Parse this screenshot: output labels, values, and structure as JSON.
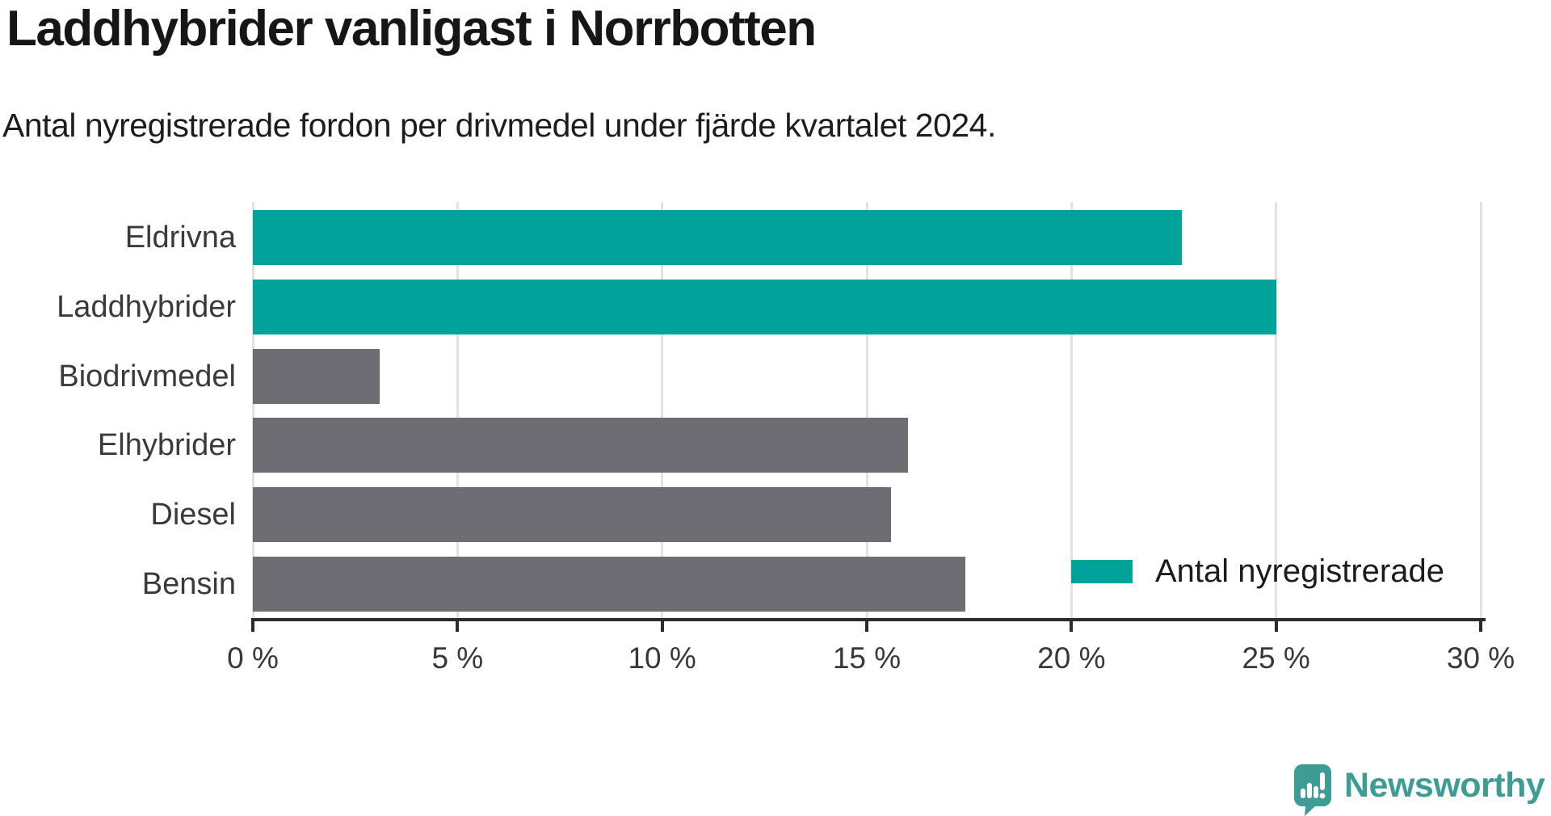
{
  "title": "Laddhybrider vanligast i Norrbotten",
  "subtitle": "Antal nyregistrerade fordon per drivmedel under fjärde kvartalet 2024.",
  "legend": {
    "label": "Antal nyregistrerade",
    "swatch_color": "#00A29A"
  },
  "logo": {
    "text": "Newsworthy",
    "icon": "newsworthy-speech-bubble-chart-icon",
    "color": "#3D9C93"
  },
  "colors": {
    "highlight_bar": "#00A29A",
    "default_bar": "#6D6D73",
    "grid": "#E2E2E2",
    "axis": "#2B2B2B",
    "title_text": "#161616",
    "label_text": "#3A3A3A"
  },
  "chart_data": {
    "type": "bar",
    "orientation": "horizontal",
    "title": "Laddhybrider vanligast i Norrbotten",
    "subtitle": "Antal nyregistrerade fordon per drivmedel under fjärde kvartalet 2024.",
    "series_name": "Antal nyregistrerade",
    "categories": [
      "Eldrivna",
      "Laddhybrider",
      "Biodrivmedel",
      "Elhybrider",
      "Diesel",
      "Bensin"
    ],
    "values": [
      22.7,
      25.0,
      3.1,
      16.0,
      15.6,
      17.4
    ],
    "unit": "%",
    "highlighted": [
      true,
      true,
      false,
      false,
      false,
      false
    ],
    "xlim": [
      0,
      30
    ],
    "x_tick_values": [
      0,
      5,
      10,
      15,
      20,
      25,
      30
    ],
    "x_tick_labels": [
      "0 %",
      "5 %",
      "10 %",
      "15 %",
      "20 %",
      "25 %",
      "30 %"
    ],
    "grid": true,
    "gridlines_behind_bars": true,
    "legend_position": "inside-bottom-right"
  }
}
